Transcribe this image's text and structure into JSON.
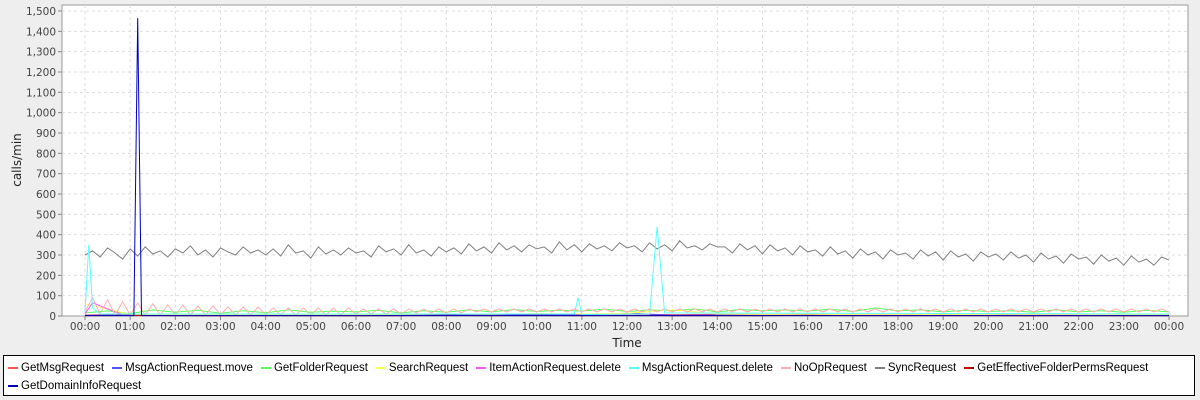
{
  "chart_data": {
    "type": "line",
    "title": "",
    "xlabel": "Time",
    "ylabel": "calls/min",
    "ylim": [
      0,
      1500
    ],
    "yticks": [
      0,
      100,
      200,
      300,
      400,
      500,
      600,
      700,
      800,
      900,
      1000,
      1100,
      1200,
      1300,
      1400,
      1500
    ],
    "ytick_labels": [
      "0",
      "100",
      "200",
      "300",
      "400",
      "500",
      "600",
      "700",
      "800",
      "900",
      "1,000",
      "1,100",
      "1,200",
      "1,300",
      "1,400",
      "1,500"
    ],
    "xticks": [
      "00:00",
      "01:00",
      "02:00",
      "03:00",
      "04:00",
      "05:00",
      "06:00",
      "07:00",
      "08:00",
      "09:00",
      "10:00",
      "11:00",
      "12:00",
      "13:00",
      "14:00",
      "15:00",
      "16:00",
      "17:00",
      "18:00",
      "19:00",
      "20:00",
      "21:00",
      "22:00",
      "23:00",
      "00:00"
    ],
    "xlim": [
      "00:00",
      "24:00"
    ],
    "grid": true,
    "legend_position": "bottom",
    "series": [
      {
        "name": "GetMsgRequest",
        "color": "#ff5555",
        "step_min": 60,
        "values": [
          5,
          8,
          6,
          4,
          7,
          5,
          6,
          8,
          9,
          7,
          10,
          8,
          9,
          7,
          8,
          6,
          9,
          7,
          6,
          8,
          5,
          7,
          6,
          5,
          6
        ]
      },
      {
        "name": "MsgActionRequest.move",
        "color": "#5555ff",
        "step_min": 60,
        "values": [
          3,
          5,
          2,
          4,
          3,
          2,
          4,
          3,
          5,
          4,
          6,
          5,
          14,
          4,
          5,
          3,
          4,
          3,
          2,
          4,
          12,
          3,
          2,
          3,
          2
        ]
      },
      {
        "name": "GetFolderRequest",
        "color": "#55ff55",
        "step_min": 30,
        "values": [
          15,
          25,
          12,
          30,
          18,
          28,
          14,
          26,
          16,
          30,
          18,
          24,
          20,
          28,
          15,
          26,
          18,
          30,
          20,
          32,
          22,
          28,
          24,
          34,
          22,
          30,
          25,
          35,
          20,
          32,
          26,
          30,
          24,
          34,
          22,
          40,
          25,
          30,
          20,
          28,
          22,
          26,
          18,
          30,
          20,
          26,
          18,
          28,
          20
        ]
      },
      {
        "name": "SearchRequest",
        "color": "#ffff55",
        "step_min": 60,
        "values": [
          60,
          8,
          6,
          5,
          7,
          6,
          5,
          8,
          10,
          9,
          12,
          10,
          14,
          30,
          10,
          8,
          9,
          7,
          6,
          8,
          7,
          6,
          5,
          6,
          5
        ]
      },
      {
        "name": "ItemActionRequest.delete",
        "color": "#ff55ff",
        "step_min": 10,
        "values": [
          10,
          65,
          50,
          35,
          20,
          8,
          3,
          2,
          2,
          2,
          2,
          2,
          2
        ]
      },
      {
        "name": "MsgActionRequest.delete",
        "color": "#55ffff",
        "points": [
          [
            "00:00",
            20
          ],
          [
            "00:05",
            350
          ],
          [
            "00:10",
            40
          ],
          [
            "00:20",
            10
          ],
          [
            "10:50",
            10
          ],
          [
            "10:55",
            90
          ],
          [
            "11:00",
            8
          ],
          [
            "12:30",
            10
          ],
          [
            "12:40",
            440
          ],
          [
            "12:50",
            15
          ],
          [
            "24:00",
            10
          ]
        ]
      },
      {
        "name": "NoOpRequest",
        "color": "#ffafaf",
        "step_min": 10,
        "values": [
          20,
          90,
          10,
          80,
          5,
          70,
          5,
          65,
          5,
          60,
          5,
          55,
          5,
          55,
          5,
          50,
          5,
          50,
          5,
          45,
          5,
          45,
          5,
          45,
          5,
          40,
          5,
          40,
          5,
          40,
          5,
          40,
          5,
          40,
          5,
          40,
          10,
          35,
          10,
          35,
          10,
          35,
          10,
          35,
          15,
          35,
          15,
          35,
          15,
          35,
          15,
          35,
          20,
          35,
          20,
          35,
          20,
          35,
          20,
          35,
          20,
          35,
          20,
          35,
          20,
          35,
          20,
          35,
          20,
          35,
          20,
          35,
          20,
          35,
          20,
          35,
          20,
          35,
          20,
          35,
          20,
          35,
          20,
          35,
          20,
          35,
          20,
          35,
          20,
          35,
          20,
          35,
          20,
          35,
          20,
          35,
          20,
          35,
          20,
          35,
          20,
          35,
          20,
          35,
          20,
          35,
          20,
          35,
          20,
          35,
          20,
          35,
          20,
          35,
          20,
          35,
          20,
          35,
          20,
          35,
          20,
          35,
          20,
          35,
          20,
          35,
          20,
          35,
          20,
          35,
          20,
          35,
          20,
          35,
          20,
          35,
          20,
          35,
          20,
          35,
          20,
          35,
          20,
          35,
          20
        ]
      },
      {
        "name": "SyncRequest",
        "color": "#808080",
        "step_min": 10,
        "values": [
          300,
          320,
          290,
          335,
          310,
          280,
          330,
          295,
          340,
          305,
          320,
          290,
          330,
          310,
          345,
          300,
          325,
          290,
          335,
          315,
          300,
          340,
          310,
          325,
          300,
          330,
          295,
          350,
          310,
          320,
          285,
          340,
          305,
          325,
          300,
          335,
          310,
          320,
          290,
          345,
          315,
          330,
          300,
          350,
          310,
          325,
          295,
          340,
          315,
          335,
          305,
          355,
          320,
          340,
          310,
          360,
          325,
          345,
          315,
          350,
          330,
          340,
          310,
          365,
          325,
          350,
          315,
          355,
          330,
          345,
          320,
          360,
          335,
          345,
          315,
          360,
          330,
          350,
          320,
          370,
          335,
          345,
          325,
          355,
          340,
          340,
          310,
          355,
          325,
          345,
          305,
          350,
          320,
          335,
          300,
          345,
          315,
          325,
          295,
          340,
          305,
          320,
          285,
          330,
          300,
          315,
          280,
          325,
          300,
          310,
          280,
          325,
          295,
          315,
          275,
          320,
          290,
          305,
          270,
          315,
          290,
          305,
          275,
          315,
          285,
          300,
          265,
          310,
          280,
          295,
          260,
          305,
          280,
          290,
          255,
          300,
          270,
          285,
          250,
          295,
          265,
          280,
          250,
          290,
          275
        ]
      },
      {
        "name": "GetEffectiveFolderPermsRequest",
        "color": "#c00000",
        "step_min": 60,
        "values": [
          2,
          3,
          2,
          1,
          2,
          2,
          1,
          2,
          3,
          2,
          3,
          2,
          3,
          2,
          2,
          2,
          3,
          2,
          2,
          2,
          2,
          1,
          2,
          1,
          2
        ]
      },
      {
        "name": "GetDomainInfoRequest",
        "color": "#0000c0",
        "points": [
          [
            "00:00",
            2
          ],
          [
            "01:05",
            2
          ],
          [
            "01:10",
            1465
          ],
          [
            "01:15",
            2
          ],
          [
            "24:00",
            2
          ]
        ]
      }
    ]
  }
}
